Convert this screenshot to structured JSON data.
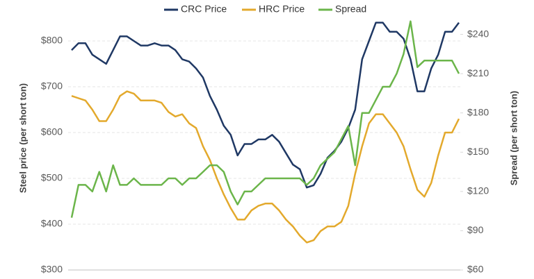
{
  "chart_data": {
    "type": "line",
    "legend": "top",
    "grid": true,
    "ylabel": "Steel price (per short ton)",
    "y2label": "Spread (per short ton)",
    "ylim": [
      300,
      900
    ],
    "yticks": [
      {
        "value": 300,
        "label": "$300"
      },
      {
        "value": 400,
        "label": "$400"
      },
      {
        "value": 500,
        "label": "$500"
      },
      {
        "value": 600,
        "label": "$600"
      },
      {
        "value": 700,
        "label": "$700"
      },
      {
        "value": 800,
        "label": "$800"
      }
    ],
    "y2lim": [
      60,
      270
    ],
    "y2ticks": [
      {
        "value": 60,
        "label": "$60"
      },
      {
        "value": 90,
        "label": "$90"
      },
      {
        "value": 120,
        "label": "$120"
      },
      {
        "value": 150,
        "label": "$150"
      },
      {
        "value": 180,
        "label": "$180"
      },
      {
        "value": 210,
        "label": "$210"
      },
      {
        "value": 240,
        "label": "$240"
      }
    ],
    "series": [
      {
        "name": "CRC Price",
        "color": "#1f3864",
        "values": [
          780,
          795,
          795,
          770,
          760,
          750,
          780,
          810,
          810,
          800,
          790,
          790,
          795,
          790,
          790,
          780,
          760,
          755,
          740,
          720,
          680,
          650,
          615,
          595,
          550,
          575,
          575,
          585,
          585,
          595,
          580,
          555,
          530,
          520,
          480,
          485,
          510,
          545,
          560,
          580,
          610,
          650,
          760,
          800,
          840,
          840,
          820,
          820,
          805,
          760,
          690,
          690,
          740,
          770,
          820,
          820,
          840
        ]
      },
      {
        "name": "HRC Price",
        "color": "#e3a92c",
        "values": [
          680,
          675,
          670,
          650,
          625,
          625,
          650,
          680,
          690,
          685,
          670,
          670,
          670,
          665,
          645,
          635,
          640,
          620,
          610,
          570,
          540,
          500,
          465,
          435,
          410,
          410,
          430,
          440,
          445,
          445,
          430,
          410,
          395,
          375,
          360,
          365,
          385,
          395,
          395,
          405,
          440,
          510,
          570,
          620,
          640,
          640,
          620,
          600,
          570,
          520,
          475,
          460,
          490,
          550,
          600,
          600,
          630
        ]
      },
      {
        "name": "Spread",
        "color": "#6bb54a",
        "axis": "y2",
        "values": [
          100,
          125,
          125,
          120,
          135,
          120,
          140,
          125,
          125,
          130,
          125,
          125,
          125,
          125,
          130,
          130,
          125,
          130,
          130,
          135,
          140,
          140,
          135,
          120,
          110,
          120,
          120,
          125,
          130,
          130,
          130,
          130,
          130,
          130,
          125,
          130,
          140,
          145,
          150,
          160,
          170,
          140,
          180,
          180,
          190,
          200,
          200,
          210,
          225,
          250,
          215,
          220,
          220,
          220,
          220,
          220,
          210
        ]
      }
    ]
  }
}
